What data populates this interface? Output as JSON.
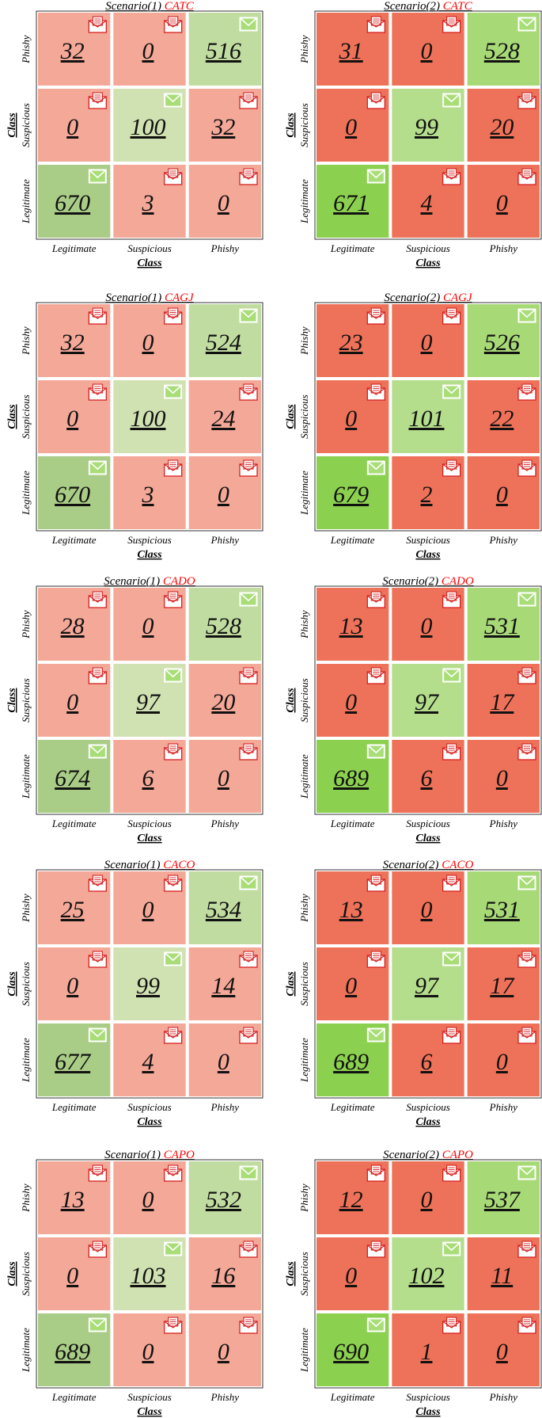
{
  "colors": {
    "red_s1": "#f4a898",
    "red_s2": "#ee7259",
    "green_diag_s1": "#a9cc86",
    "green_diag_s2": "#8cd04f",
    "green_mid_s1": "#d0e1b2",
    "green_mid_s2": "#b4dd8c",
    "green_top_s1": "#c1dca0",
    "green_top_s2": "#a8d977",
    "title_red": "#ff0000"
  },
  "chart_data": [
    {
      "type": "heatmap",
      "title_prefix": "Scenario(1)",
      "title_method": "CATC",
      "xlabel": "Class",
      "ylabel": "Class",
      "x_categories": [
        "Legitimate",
        "Suspicious",
        "Phishy"
      ],
      "y_categories": [
        "Phishy",
        "Suspicious",
        "Legitimate"
      ],
      "values": [
        [
          32,
          0,
          516
        ],
        [
          0,
          100,
          32
        ],
        [
          670,
          3,
          0
        ]
      ]
    },
    {
      "type": "heatmap",
      "title_prefix": "Scenario(2)",
      "title_method": "CATC",
      "xlabel": "Class",
      "ylabel": "Class",
      "x_categories": [
        "Legitimate",
        "Suspicious",
        "Phishy"
      ],
      "y_categories": [
        "Phishy",
        "Suspicious",
        "Legitimate"
      ],
      "values": [
        [
          31,
          0,
          528
        ],
        [
          0,
          99,
          20
        ],
        [
          671,
          4,
          0
        ]
      ]
    },
    {
      "type": "heatmap",
      "title_prefix": "Scenario(1)",
      "title_method": "CAGJ",
      "xlabel": "Class",
      "ylabel": "Class",
      "x_categories": [
        "Legitimate",
        "Suspicious",
        "Phishy"
      ],
      "y_categories": [
        "Phishy",
        "Suspicious",
        "Legitimate"
      ],
      "values": [
        [
          32,
          0,
          524
        ],
        [
          0,
          100,
          24
        ],
        [
          670,
          3,
          0
        ]
      ]
    },
    {
      "type": "heatmap",
      "title_prefix": "Scenario(2)",
      "title_method": "CAGJ",
      "xlabel": "Class",
      "ylabel": "Class",
      "x_categories": [
        "Legitimate",
        "Suspicious",
        "Phishy"
      ],
      "y_categories": [
        "Phishy",
        "Suspicious",
        "Legitimate"
      ],
      "values": [
        [
          23,
          0,
          526
        ],
        [
          0,
          101,
          22
        ],
        [
          679,
          2,
          0
        ]
      ]
    },
    {
      "type": "heatmap",
      "title_prefix": "Scenario(1)",
      "title_method": "CADO",
      "xlabel": "Class",
      "ylabel": "Class",
      "x_categories": [
        "Legitimate",
        "Suspicious",
        "Phishy"
      ],
      "y_categories": [
        "Phishy",
        "Suspicious",
        "Legitimate"
      ],
      "values": [
        [
          28,
          0,
          528
        ],
        [
          0,
          97,
          20
        ],
        [
          674,
          6,
          0
        ]
      ]
    },
    {
      "type": "heatmap",
      "title_prefix": "Scenario(2)",
      "title_method": "CADO",
      "xlabel": "Class",
      "ylabel": "Class",
      "x_categories": [
        "Legitimate",
        "Suspicious",
        "Phishy"
      ],
      "y_categories": [
        "Phishy",
        "Suspicious",
        "Legitimate"
      ],
      "values": [
        [
          13,
          0,
          531
        ],
        [
          0,
          97,
          17
        ],
        [
          689,
          6,
          0
        ]
      ]
    },
    {
      "type": "heatmap",
      "title_prefix": "Scenario(1)",
      "title_method": "CACO",
      "xlabel": "Class",
      "ylabel": "Class",
      "x_categories": [
        "Legitimate",
        "Suspicious",
        "Phishy"
      ],
      "y_categories": [
        "Phishy",
        "Suspicious",
        "Legitimate"
      ],
      "values": [
        [
          25,
          0,
          534
        ],
        [
          0,
          99,
          14
        ],
        [
          677,
          4,
          0
        ]
      ]
    },
    {
      "type": "heatmap",
      "title_prefix": "Scenario(2)",
      "title_method": "CACO",
      "xlabel": "Class",
      "ylabel": "Class",
      "x_categories": [
        "Legitimate",
        "Suspicious",
        "Phishy"
      ],
      "y_categories": [
        "Phishy",
        "Suspicious",
        "Legitimate"
      ],
      "values": [
        [
          13,
          0,
          531
        ],
        [
          0,
          97,
          17
        ],
        [
          689,
          6,
          0
        ]
      ]
    },
    {
      "type": "heatmap",
      "title_prefix": "Scenario(1)",
      "title_method": "CAPO",
      "xlabel": "Class",
      "ylabel": "Class",
      "x_categories": [
        "Legitimate",
        "Suspicious",
        "Phishy"
      ],
      "y_categories": [
        "Phishy",
        "Suspicious",
        "Legitimate"
      ],
      "values": [
        [
          13,
          0,
          532
        ],
        [
          0,
          103,
          16
        ],
        [
          689,
          0,
          0
        ]
      ]
    },
    {
      "type": "heatmap",
      "title_prefix": "Scenario(2)",
      "title_method": "CAPO",
      "xlabel": "Class",
      "ylabel": "Class",
      "x_categories": [
        "Legitimate",
        "Suspicious",
        "Phishy"
      ],
      "y_categories": [
        "Phishy",
        "Suspicious",
        "Legitimate"
      ],
      "values": [
        [
          12,
          0,
          537
        ],
        [
          0,
          102,
          11
        ],
        [
          690,
          1,
          0
        ]
      ]
    }
  ]
}
